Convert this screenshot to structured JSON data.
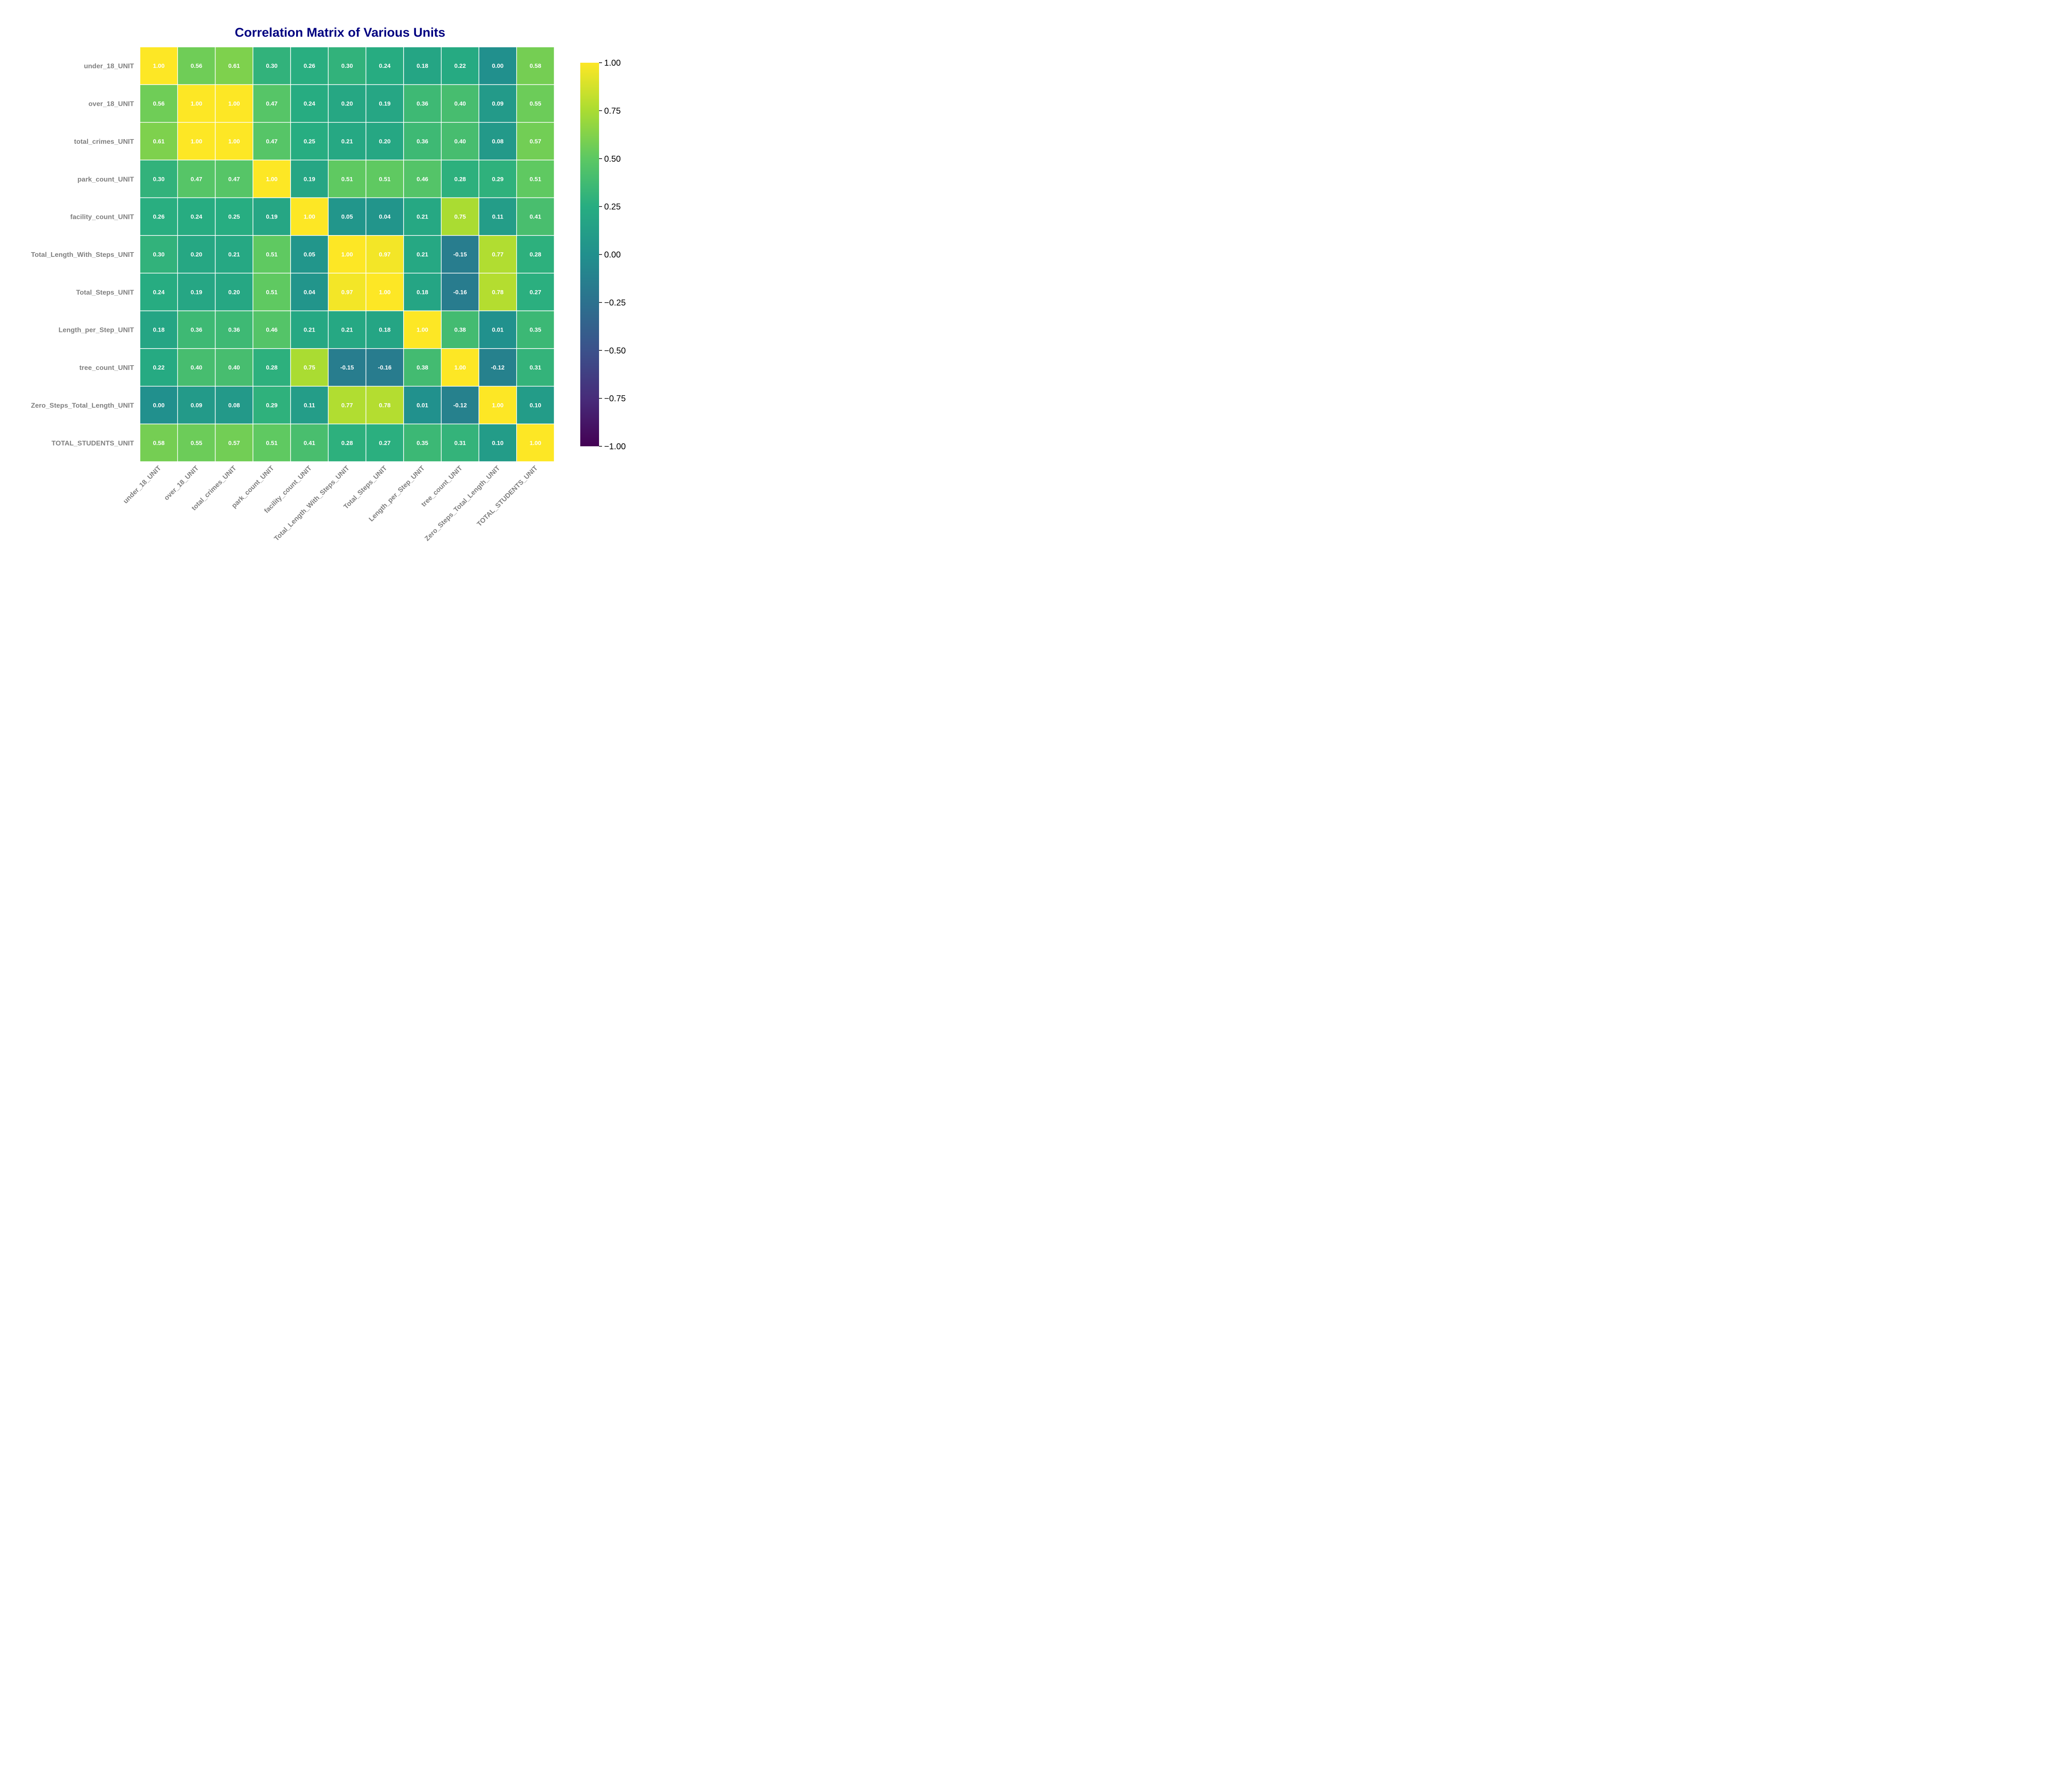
{
  "chart_data": {
    "type": "heatmap",
    "title": "Correlation Matrix of Various Units",
    "xlabel": "",
    "ylabel": "",
    "labels": [
      "under_18_UNIT",
      "over_18_UNIT",
      "total_crimes_UNIT",
      "park_count_UNIT",
      "facility_count_UNIT",
      "Total_Length_With_Steps_UNIT",
      "Total_Steps_UNIT",
      "Length_per_Step_UNIT",
      "tree_count_UNIT",
      "Zero_Steps_Total_Length_UNIT",
      "TOTAL_STUDENTS_UNIT"
    ],
    "matrix": [
      [
        1.0,
        0.56,
        0.61,
        0.3,
        0.26,
        0.3,
        0.24,
        0.18,
        0.22,
        0.0,
        0.58
      ],
      [
        0.56,
        1.0,
        1.0,
        0.47,
        0.24,
        0.2,
        0.19,
        0.36,
        0.4,
        0.09,
        0.55
      ],
      [
        0.61,
        1.0,
        1.0,
        0.47,
        0.25,
        0.21,
        0.2,
        0.36,
        0.4,
        0.08,
        0.57
      ],
      [
        0.3,
        0.47,
        0.47,
        1.0,
        0.19,
        0.51,
        0.51,
        0.46,
        0.28,
        0.29,
        0.51
      ],
      [
        0.26,
        0.24,
        0.25,
        0.19,
        1.0,
        0.05,
        0.04,
        0.21,
        0.75,
        0.11,
        0.41
      ],
      [
        0.3,
        0.2,
        0.21,
        0.51,
        0.05,
        1.0,
        0.97,
        0.21,
        -0.15,
        0.77,
        0.28
      ],
      [
        0.24,
        0.19,
        0.2,
        0.51,
        0.04,
        0.97,
        1.0,
        0.18,
        -0.16,
        0.78,
        0.27
      ],
      [
        0.18,
        0.36,
        0.36,
        0.46,
        0.21,
        0.21,
        0.18,
        1.0,
        0.38,
        0.01,
        0.35
      ],
      [
        0.22,
        0.4,
        0.4,
        0.28,
        0.75,
        -0.15,
        -0.16,
        0.38,
        1.0,
        -0.12,
        0.31
      ],
      [
        0.0,
        0.09,
        0.08,
        0.29,
        0.11,
        0.77,
        0.78,
        0.01,
        -0.12,
        1.0,
        0.1
      ],
      [
        0.58,
        0.55,
        0.57,
        0.51,
        0.41,
        0.28,
        0.27,
        0.35,
        0.31,
        0.1,
        1.0
      ]
    ],
    "colormap": "viridis",
    "vmin": -1.0,
    "vmax": 1.0,
    "annotation_format": "0.00",
    "colorbar": {
      "position": "right",
      "ticks": [
        1.0,
        0.75,
        0.5,
        0.25,
        0.0,
        -0.25,
        -0.5,
        -0.75,
        -1.0
      ],
      "tick_labels": [
        "1.00",
        "0.75",
        "0.50",
        "0.25",
        "0.00",
        "−0.25",
        "−0.50",
        "−0.75",
        "−1.00"
      ]
    },
    "grid_line_color": "#ffffff"
  }
}
